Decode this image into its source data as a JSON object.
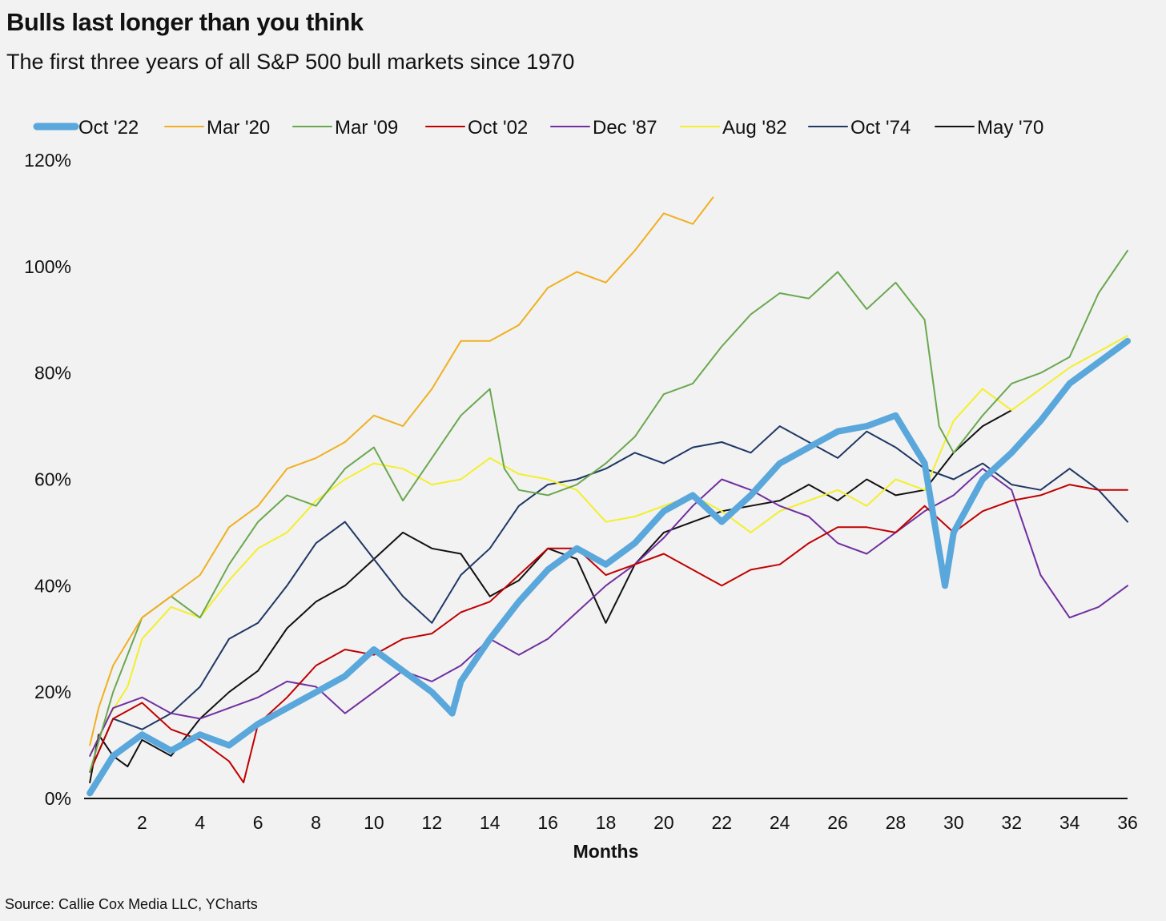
{
  "title": "Bulls last longer than you think",
  "subtitle": "The first three years of all S&P 500 bull markets since 1970",
  "source": "Source: Callie Cox Media LLC, YCharts",
  "chart_data": {
    "type": "line",
    "xlabel": "Months",
    "ylabel": "",
    "xlim": [
      0,
      36
    ],
    "ylim": [
      0,
      120
    ],
    "x_ticks": [
      2,
      4,
      6,
      8,
      10,
      12,
      14,
      16,
      18,
      20,
      22,
      24,
      26,
      28,
      30,
      32,
      34,
      36
    ],
    "x_tick_labels": [
      "2",
      "4",
      "6",
      "8",
      "10",
      "12",
      "14",
      "16",
      "18",
      "20",
      "22",
      "24",
      "26",
      "28",
      "30",
      "32",
      "34",
      "36"
    ],
    "y_ticks": [
      0,
      20,
      40,
      60,
      80,
      100,
      120
    ],
    "y_tick_labels": [
      "0%",
      "20%",
      "40%",
      "60%",
      "80%",
      "100%",
      "120%"
    ],
    "grid": false,
    "legend_position": "top",
    "series": [
      {
        "name": "Oct '22",
        "color": "#5aa7dc",
        "width": 8,
        "x": [
          0.2,
          1,
          2,
          3,
          4,
          5,
          6,
          7,
          8,
          9,
          10,
          11,
          12,
          12.7,
          13,
          14,
          15,
          16,
          17,
          18,
          19,
          20,
          21,
          22,
          23,
          24,
          25,
          26,
          27,
          28,
          29,
          29.7,
          30,
          31,
          32,
          33,
          34,
          35,
          36
        ],
        "y": [
          1,
          8,
          12,
          9,
          12,
          10,
          14,
          17,
          20,
          23,
          28,
          24,
          20,
          16,
          22,
          30,
          37,
          43,
          47,
          44,
          48,
          54,
          57,
          52,
          57,
          63,
          66,
          69,
          70,
          72,
          63,
          40,
          50,
          60,
          65,
          71,
          78,
          82,
          86
        ]
      },
      {
        "name": "Mar '20",
        "color": "#f0b020",
        "width": 2,
        "x": [
          0.2,
          0.5,
          1,
          2,
          3,
          4,
          5,
          6,
          7,
          8,
          9,
          10,
          11,
          12,
          13,
          14,
          15,
          16,
          17,
          18,
          19,
          20,
          21,
          21.7
        ],
        "y": [
          10,
          17,
          25,
          34,
          38,
          42,
          51,
          55,
          62,
          64,
          67,
          72,
          70,
          77,
          86,
          86,
          89,
          96,
          99,
          97,
          103,
          110,
          108,
          113
        ]
      },
      {
        "name": "Mar '09",
        "color": "#6aa84f",
        "width": 2,
        "x": [
          0.2,
          1,
          2,
          3,
          4,
          5,
          6,
          7,
          8,
          9,
          10,
          11,
          12,
          13,
          14,
          14.5,
          15,
          16,
          17,
          18,
          19,
          20,
          21,
          22,
          23,
          24,
          25,
          26,
          27,
          28,
          29,
          29.5,
          30,
          31,
          32,
          33,
          34,
          35,
          36
        ],
        "y": [
          5,
          20,
          34,
          38,
          34,
          44,
          52,
          57,
          55,
          62,
          66,
          56,
          64,
          72,
          77,
          62,
          58,
          57,
          59,
          63,
          68,
          76,
          78,
          85,
          91,
          95,
          94,
          99,
          92,
          97,
          90,
          70,
          65,
          72,
          78,
          80,
          83,
          95,
          103
        ]
      },
      {
        "name": "Oct '02",
        "color": "#c00000",
        "width": 2,
        "x": [
          0.2,
          1,
          2,
          3,
          4,
          5,
          5.5,
          6,
          7,
          8,
          9,
          10,
          11,
          12,
          13,
          14,
          15,
          16,
          17,
          18,
          19,
          20,
          21,
          22,
          23,
          24,
          25,
          26,
          27,
          28,
          29,
          30,
          31,
          32,
          33,
          34,
          35,
          36
        ],
        "y": [
          5,
          15,
          18,
          13,
          11,
          7,
          3,
          14,
          19,
          25,
          28,
          27,
          30,
          31,
          35,
          37,
          42,
          47,
          47,
          42,
          44,
          46,
          43,
          40,
          43,
          44,
          48,
          51,
          51,
          50,
          55,
          50,
          54,
          56,
          57,
          59,
          58,
          58
        ]
      },
      {
        "name": "Dec '87",
        "color": "#7030a0",
        "width": 2,
        "x": [
          0.2,
          1,
          2,
          3,
          4,
          5,
          6,
          7,
          8,
          9,
          10,
          11,
          12,
          13,
          14,
          15,
          16,
          17,
          18,
          19,
          20,
          21,
          22,
          23,
          24,
          25,
          26,
          27,
          28,
          29,
          30,
          31,
          32,
          33,
          34,
          35,
          36
        ],
        "y": [
          8,
          17,
          19,
          16,
          15,
          17,
          19,
          22,
          21,
          16,
          20,
          24,
          22,
          25,
          30,
          27,
          30,
          35,
          40,
          44,
          49,
          55,
          60,
          58,
          55,
          53,
          48,
          46,
          50,
          54,
          57,
          62,
          58,
          42,
          34,
          36,
          40
        ]
      },
      {
        "name": "Aug '82",
        "color": "#f4ef29",
        "width": 2,
        "x": [
          0.2,
          0.8,
          1.5,
          2,
          3,
          4,
          5,
          6,
          7,
          8,
          9,
          10,
          11,
          12,
          13,
          14,
          15,
          16,
          17,
          18,
          19,
          20,
          21,
          22,
          23,
          24,
          25,
          26,
          27,
          28,
          29,
          30,
          31,
          32,
          33,
          34,
          35,
          36
        ],
        "y": [
          8,
          15,
          21,
          30,
          36,
          34,
          41,
          47,
          50,
          56,
          60,
          63,
          62,
          59,
          60,
          64,
          61,
          60,
          58,
          52,
          53,
          55,
          57,
          54,
          50,
          54,
          56,
          58,
          55,
          60,
          58,
          71,
          77,
          73,
          77,
          81,
          84,
          87
        ]
      },
      {
        "name": "Oct '74",
        "color": "#1f3864",
        "width": 2,
        "x": [
          0.2,
          1,
          2,
          3,
          4,
          5,
          6,
          7,
          8,
          9,
          10,
          11,
          12,
          13,
          14,
          15,
          16,
          17,
          18,
          19,
          20,
          21,
          22,
          23,
          24,
          25,
          26,
          27,
          28,
          29,
          30,
          31,
          32,
          33,
          34,
          35,
          36
        ],
        "y": [
          5,
          15,
          13,
          16,
          21,
          30,
          33,
          40,
          48,
          52,
          45,
          38,
          33,
          42,
          47,
          55,
          59,
          60,
          62,
          65,
          63,
          66,
          67,
          65,
          70,
          67,
          64,
          69,
          66,
          62,
          60,
          63,
          59,
          58,
          62,
          58,
          52
        ]
      },
      {
        "name": "May '70",
        "color": "#111111",
        "width": 2,
        "x": [
          0.2,
          0.5,
          1,
          1.5,
          2,
          3,
          4,
          5,
          6,
          7,
          8,
          9,
          10,
          11,
          12,
          13,
          14,
          15,
          16,
          17,
          18,
          19,
          20,
          21,
          22,
          23,
          24,
          25,
          26,
          27,
          28,
          29,
          30,
          31,
          32
        ],
        "y": [
          3,
          12,
          8,
          6,
          11,
          8,
          15,
          20,
          24,
          32,
          37,
          40,
          45,
          50,
          47,
          46,
          38,
          41,
          47,
          45,
          33,
          44,
          50,
          52,
          54,
          55,
          56,
          59,
          56,
          60,
          57,
          58,
          65,
          70,
          73
        ]
      }
    ]
  }
}
